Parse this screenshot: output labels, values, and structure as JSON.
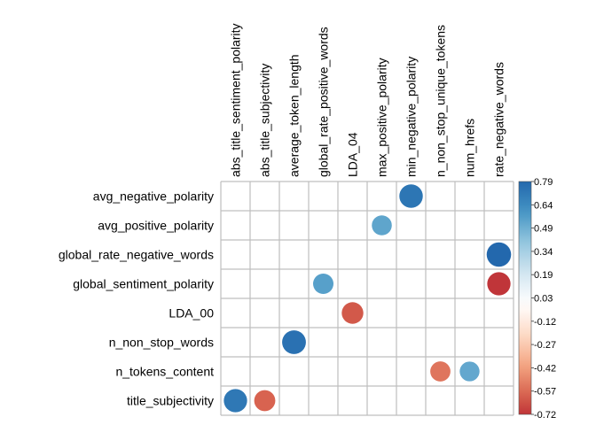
{
  "chart_data": {
    "type": "heatmap",
    "columns": [
      "abs_title_sentiment_polarity",
      "abs_title_subjectivity",
      "average_token_length",
      "global_rate_positive_words",
      "LDA_04",
      "max_positive_polarity",
      "min_negative_polarity",
      "n_non_stop_unique_tokens",
      "num_hrefs",
      "rate_negative_words"
    ],
    "rows": [
      "avg_negative_polarity",
      "avg_positive_polarity",
      "global_rate_negative_words",
      "global_sentiment_polarity",
      "LDA_00",
      "n_non_stop_words",
      "n_tokens_content",
      "title_subjectivity"
    ],
    "cells": [
      {
        "row": "avg_negative_polarity",
        "col": "min_negative_polarity",
        "value": 0.73
      },
      {
        "row": "avg_positive_polarity",
        "col": "max_positive_polarity",
        "value": 0.53
      },
      {
        "row": "global_rate_negative_words",
        "col": "rate_negative_words",
        "value": 0.79
      },
      {
        "row": "global_sentiment_polarity",
        "col": "global_rate_positive_words",
        "value": 0.55
      },
      {
        "row": "global_sentiment_polarity",
        "col": "rate_negative_words",
        "value": -0.72
      },
      {
        "row": "LDA_00",
        "col": "LDA_04",
        "value": -0.62
      },
      {
        "row": "n_non_stop_words",
        "col": "average_token_length",
        "value": 0.75
      },
      {
        "row": "n_tokens_content",
        "col": "n_non_stop_unique_tokens",
        "value": -0.54
      },
      {
        "row": "n_tokens_content",
        "col": "num_hrefs",
        "value": 0.52
      },
      {
        "row": "title_subjectivity",
        "col": "abs_title_sentiment_polarity",
        "value": 0.72
      },
      {
        "row": "title_subjectivity",
        "col": "abs_title_subjectivity",
        "value": -0.59
      }
    ],
    "colorbar": {
      "ticks": [
        "0.79",
        "0.64",
        "0.49",
        "0.34",
        "0.19",
        "0.03",
        "-0.12",
        "-0.27",
        "-0.42",
        "-0.57",
        "-0.72"
      ],
      "range": [
        -0.72,
        0.79
      ],
      "colors": [
        "#67001F",
        "#B2182B",
        "#D6604D",
        "#F4A582",
        "#FDDBC7",
        "#FFFFFF",
        "#D1E5F0",
        "#92C5DE",
        "#4393C3",
        "#2166AC",
        "#053061"
      ]
    },
    "grid": true
  }
}
